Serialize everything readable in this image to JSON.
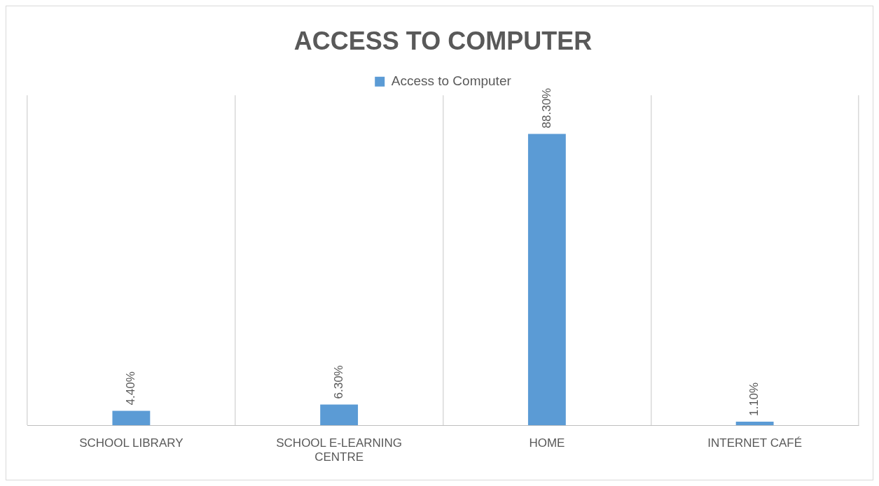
{
  "chart_data": {
    "type": "bar",
    "title": "ACCESS TO COMPUTER",
    "categories": [
      "SCHOOL LIBRARY",
      "SCHOOL E-LEARNING CENTRE",
      "HOME",
      "INTERNET CAFÉ"
    ],
    "series": [
      {
        "name": "Access to Computer",
        "color": "#5b9bd5",
        "values": [
          4.4,
          6.3,
          88.3,
          1.1
        ],
        "value_labels": [
          "4.40%",
          "6.30%",
          "88.30%",
          "1.10%"
        ]
      }
    ],
    "grid": "x",
    "legend": "top"
  }
}
